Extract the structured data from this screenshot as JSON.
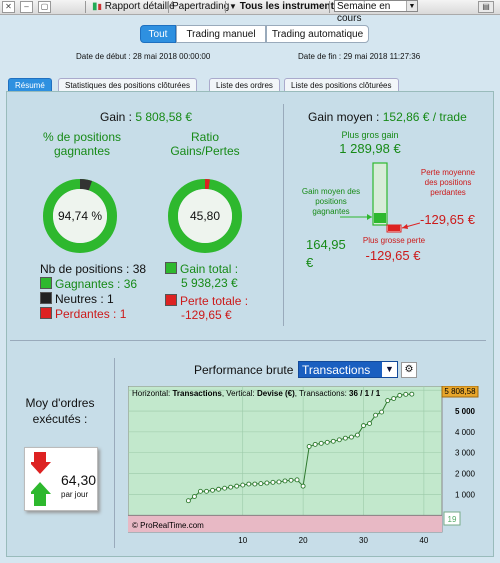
{
  "toolbar": {
    "report": "Rapport détaillé",
    "papertrading": "Papertrading",
    "instruments": "Tous les instruments",
    "period": "Semaine en cours"
  },
  "mode_tabs": [
    "Tout",
    "Trading manuel",
    "Trading automatique"
  ],
  "dates": {
    "start": "Date de début : 28 mai 2018 00:00:00",
    "end": "Date de fin : 29 mai 2018 11:27:36"
  },
  "tabs": [
    "Résumé",
    "Statistiques des positions clôturées",
    "Liste des ordres",
    "Liste des positions clôturées"
  ],
  "summary": {
    "gain_label": "Gain :",
    "gain_value": "5 808,58 €",
    "pct_title": "% de positions gagnantes",
    "pct_value": "94,74 %",
    "pct_fraction": 0.9474,
    "ratio_title": "Ratio Gains/Pertes",
    "ratio_value": "45,80",
    "ratio_fraction": 0.9786,
    "nb_positions": "Nb de positions : 38",
    "winners": "Gagnantes : 36",
    "neutral": "Neutres : 1",
    "losers": "Perdantes : 1",
    "total_gain_label": "Gain total :",
    "total_gain_value": "5 938,23 €",
    "total_loss_label": "Perte totale :",
    "total_loss_value": "-129,65 €"
  },
  "avg_gain": {
    "label": "Gain moyen :",
    "value": "152,86 € / trade",
    "biggest_gain_label": "Plus gros gain",
    "biggest_gain_value": "1 289,98 €",
    "avg_win_label": "Gain moyen des positions gagnantes",
    "avg_win_value": "164,95 €",
    "avg_loss_label": "Perte moyenne des positions perdantes",
    "avg_loss_value": "-129,65 €",
    "biggest_loss_label": "Plus grosse perte",
    "biggest_loss_value": "-129,65 €"
  },
  "orders": {
    "title": "Moy d'ordres exécutés :",
    "value": "64,30",
    "unit": "par jour"
  },
  "perf": {
    "title": "Performance brute",
    "selector": "Transactions",
    "info_prefix": "Horizontal:",
    "info_h": "Transactions",
    "info_v_label": ", Vertical:",
    "info_v": "Devise (€)",
    "info_t": ", Transactions:",
    "info_count": "36 / 1 / 1",
    "last_value": "5 808,58",
    "copyright": "© ProRealTime.com",
    "right_badge": "19"
  },
  "chart_data": {
    "type": "line",
    "x": [
      1,
      2,
      3,
      4,
      5,
      6,
      7,
      8,
      9,
      10,
      11,
      12,
      13,
      14,
      15,
      16,
      17,
      18,
      19,
      20,
      21,
      22,
      23,
      24,
      25,
      26,
      27,
      28,
      29,
      30,
      31,
      32,
      33,
      34,
      35,
      36,
      37,
      38
    ],
    "y": [
      700,
      900,
      1150,
      1150,
      1200,
      1250,
      1300,
      1350,
      1400,
      1450,
      1500,
      1500,
      1520,
      1550,
      1580,
      1600,
      1650,
      1680,
      1700,
      1400,
      3300,
      3400,
      3450,
      3500,
      3550,
      3620,
      3700,
      3750,
      3850,
      4300,
      4400,
      4800,
      4950,
      5500,
      5600,
      5750,
      5800,
      5808.58
    ],
    "xticks": [
      "10",
      "20",
      "30",
      "40"
    ],
    "yticks": [
      "1 000",
      "2 000",
      "3 000",
      "4 000",
      "5 000",
      "6 000"
    ],
    "xlim": [
      -9,
      43
    ],
    "ylim": [
      -800,
      6200
    ],
    "grid": true,
    "colors": {
      "line": "#2f7a2f",
      "area": "#a9dcb9",
      "loss_zone": "#e8b9c5"
    }
  }
}
